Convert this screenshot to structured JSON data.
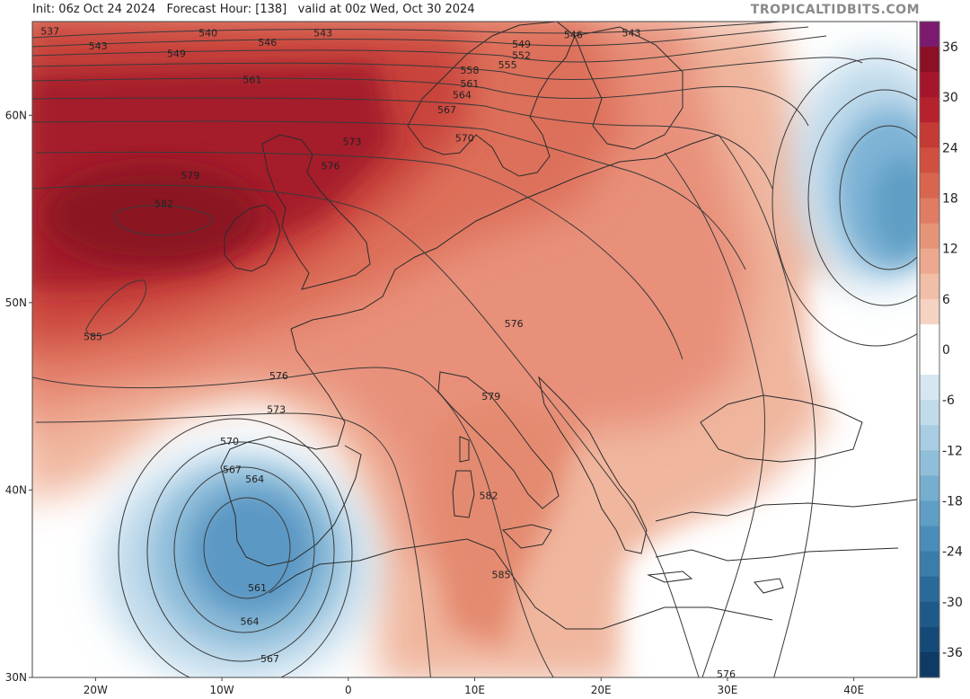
{
  "header": {
    "run_info": "Init: 06z Oct 24 2024   Forecast Hour: [138]   valid at 00z Wed, Oct 30 2024",
    "brand": "TROPICALTIDBITS.COM"
  },
  "map": {
    "region": "Europe",
    "lon_range": [
      -25,
      45
    ],
    "lat_range": [
      30,
      65
    ],
    "lon_ticks": [
      {
        "value": -20,
        "label": "20W"
      },
      {
        "value": -10,
        "label": "10W"
      },
      {
        "value": 0,
        "label": "0"
      },
      {
        "value": 10,
        "label": "10E"
      },
      {
        "value": 20,
        "label": "20E"
      },
      {
        "value": 30,
        "label": "30E"
      },
      {
        "value": 40,
        "label": "40E"
      }
    ],
    "lat_ticks": [
      {
        "value": 60,
        "label": "60N"
      },
      {
        "value": 50,
        "label": "50N"
      },
      {
        "value": 40,
        "label": "40N"
      },
      {
        "value": 30,
        "label": "30N"
      }
    ],
    "contour_labels": [
      {
        "text": "537",
        "lon": -23.6,
        "lat": 64.5
      },
      {
        "text": "543",
        "lon": -19.8,
        "lat": 63.7
      },
      {
        "text": "549",
        "lon": -13.6,
        "lat": 63.3
      },
      {
        "text": "540",
        "lon": -11.1,
        "lat": 64.4
      },
      {
        "text": "546",
        "lon": -6.4,
        "lat": 63.9
      },
      {
        "text": "543",
        "lon": -2,
        "lat": 64.4
      },
      {
        "text": "561",
        "lon": -7.6,
        "lat": 61.9
      },
      {
        "text": "549",
        "lon": 13.7,
        "lat": 63.8
      },
      {
        "text": "552",
        "lon": 13.7,
        "lat": 63.2
      },
      {
        "text": "555",
        "lon": 12.6,
        "lat": 62.7
      },
      {
        "text": "558",
        "lon": 9.6,
        "lat": 62.4
      },
      {
        "text": "546",
        "lon": 17.8,
        "lat": 64.3
      },
      {
        "text": "543",
        "lon": 22.4,
        "lat": 64.4
      },
      {
        "text": "561",
        "lon": 9.6,
        "lat": 61.7
      },
      {
        "text": "564",
        "lon": 9,
        "lat": 61.1
      },
      {
        "text": "567",
        "lon": 7.8,
        "lat": 60.3
      },
      {
        "text": "570",
        "lon": 9.2,
        "lat": 58.8
      },
      {
        "text": "573",
        "lon": 0.3,
        "lat": 58.6
      },
      {
        "text": "576",
        "lon": -1.4,
        "lat": 57.3
      },
      {
        "text": "579",
        "lon": -12.5,
        "lat": 56.8
      },
      {
        "text": "582",
        "lon": -14.6,
        "lat": 55.3
      },
      {
        "text": "585",
        "lon": -20.2,
        "lat": 48.2
      },
      {
        "text": "576",
        "lon": 13.1,
        "lat": 48.9
      },
      {
        "text": "576",
        "lon": -5.5,
        "lat": 46.1
      },
      {
        "text": "573",
        "lon": -5.7,
        "lat": 44.3
      },
      {
        "text": "579",
        "lon": 11.3,
        "lat": 45.0
      },
      {
        "text": "570",
        "lon": -9.4,
        "lat": 42.6
      },
      {
        "text": "567",
        "lon": -9.2,
        "lat": 41.1
      },
      {
        "text": "564",
        "lon": -7.4,
        "lat": 40.6
      },
      {
        "text": "582",
        "lon": 11.1,
        "lat": 39.7
      },
      {
        "text": "585",
        "lon": 12.1,
        "lat": 35.5
      },
      {
        "text": "561",
        "lon": -7.2,
        "lat": 34.8
      },
      {
        "text": "564",
        "lon": -7.8,
        "lat": 33.0
      },
      {
        "text": "567",
        "lon": -6.2,
        "lat": 31.0
      },
      {
        "text": "576",
        "lon": 29.9,
        "lat": 30.2
      }
    ]
  },
  "colorbar": {
    "labels": [
      "36",
      "30",
      "24",
      "18",
      "12",
      "6",
      "0",
      "-6",
      "-12",
      "-18",
      "-24",
      "-30",
      "-36"
    ],
    "colors": [
      "#7b1a6e",
      "#8c1024",
      "#a3162b",
      "#b5222d",
      "#c43a34",
      "#cf5040",
      "#d8654e",
      "#e07c64",
      "#e69478",
      "#eca98f",
      "#f1bea8",
      "#f5d2c2",
      "#ffffff",
      "#ffffff",
      "#d6e7f1",
      "#c2dbea",
      "#a9cde3",
      "#8fbed9",
      "#76aecf",
      "#5f9ec5",
      "#4b8dba",
      "#3a7cab",
      "#2a6a9b",
      "#1d5a8a",
      "#144a78",
      "#0e3b66"
    ]
  }
}
